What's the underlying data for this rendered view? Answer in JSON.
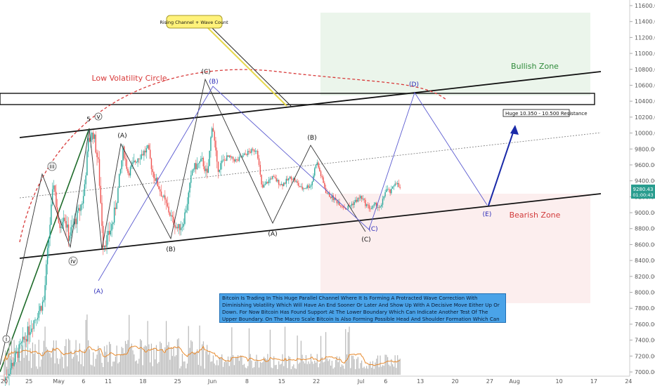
{
  "chart_data": {
    "type": "candlestick",
    "title": "",
    "y_axis": {
      "ylim": [
        6900,
        11700
      ],
      "ticks": [
        7000,
        7200,
        7400,
        7600,
        7800,
        8000,
        8200,
        8400,
        8600,
        8800,
        9000,
        9200,
        9400,
        9600,
        9800,
        10000,
        10200,
        10400,
        10600,
        10800,
        11000,
        11200,
        11400,
        11600
      ],
      "tick_labels": [
        "7000.00",
        "7200.00",
        "7400.00",
        "7600.00",
        "7800.00",
        "8000.00",
        "8200.00",
        "8400.00",
        "8600.00",
        "8800.00",
        "9000.00",
        "9200.00",
        "9400.00",
        "9600.00",
        "9800.00",
        "10000.00",
        "10200.00",
        "10400.00",
        "10600.00",
        "10800.00",
        "11000.00",
        "11200.00",
        "11400.00",
        "11600.00"
      ],
      "price_badge": "9280.43",
      "time_badge": "01:00:43"
    },
    "x_axis": {
      "labels": [
        "20",
        "25",
        "May",
        "6",
        "11",
        "18",
        "25",
        "Jun",
        "8",
        "15",
        "22",
        "Jul",
        "6",
        "13",
        "20",
        "27",
        "Aug",
        "10",
        "17",
        "24"
      ],
      "dates": [
        "2020-04-20",
        "2020-04-25",
        "2020-05-01",
        "2020-05-06",
        "2020-05-11",
        "2020-05-18",
        "2020-05-25",
        "2020-06-01",
        "2020-06-08",
        "2020-06-15",
        "2020-06-22",
        "2020-07-01",
        "2020-07-06",
        "2020-07-13",
        "2020-07-20",
        "2020-07-27",
        "2020-08-01",
        "2020-08-10",
        "2020-08-17",
        "2020-08-24"
      ]
    },
    "price_path": [
      [
        "2020-04-20",
        6900
      ],
      [
        "2020-04-22",
        7150
      ],
      [
        "2020-04-24",
        7400
      ],
      [
        "2020-04-26",
        7650
      ],
      [
        "2020-04-28",
        7900
      ],
      [
        "2020-04-29",
        8700
      ],
      [
        "2020-04-30",
        9400
      ],
      [
        "2020-05-01",
        8800
      ],
      [
        "2020-05-02",
        9000
      ],
      [
        "2020-05-03",
        8700
      ],
      [
        "2020-05-05",
        9000
      ],
      [
        "2020-05-06",
        9200
      ],
      [
        "2020-05-07",
        9900
      ],
      [
        "2020-05-08",
        10000
      ],
      [
        "2020-05-09",
        9600
      ],
      [
        "2020-05-10",
        8600
      ],
      [
        "2020-05-11",
        8700
      ],
      [
        "2020-05-12",
        8900
      ],
      [
        "2020-05-13",
        9300
      ],
      [
        "2020-05-14",
        9800
      ],
      [
        "2020-05-15",
        9500
      ],
      [
        "2020-05-17",
        9700
      ],
      [
        "2020-05-19",
        9800
      ],
      [
        "2020-05-20",
        9500
      ],
      [
        "2020-05-22",
        9200
      ],
      [
        "2020-05-24",
        8900
      ],
      [
        "2020-05-25",
        8800
      ],
      [
        "2020-05-26",
        8850
      ],
      [
        "2020-05-27",
        9150
      ],
      [
        "2020-05-28",
        9550
      ],
      [
        "2020-05-30",
        9650
      ],
      [
        "2020-05-31",
        9450
      ],
      [
        "2020-06-01",
        10150
      ],
      [
        "2020-06-02",
        9550
      ],
      [
        "2020-06-04",
        9700
      ],
      [
        "2020-06-06",
        9650
      ],
      [
        "2020-06-08",
        9750
      ],
      [
        "2020-06-10",
        9800
      ],
      [
        "2020-06-11",
        9300
      ],
      [
        "2020-06-13",
        9450
      ],
      [
        "2020-06-15",
        9350
      ],
      [
        "2020-06-17",
        9450
      ],
      [
        "2020-06-19",
        9300
      ],
      [
        "2020-06-21",
        9350
      ],
      [
        "2020-06-22",
        9650
      ],
      [
        "2020-06-24",
        9250
      ],
      [
        "2020-06-26",
        9150
      ],
      [
        "2020-06-28",
        9050
      ],
      [
        "2020-06-30",
        9150
      ],
      [
        "2020-07-01",
        9200
      ],
      [
        "2020-07-02",
        9100
      ],
      [
        "2020-07-03",
        9050
      ],
      [
        "2020-07-04",
        9100
      ],
      [
        "2020-07-05",
        9050
      ],
      [
        "2020-07-06",
        9300
      ],
      [
        "2020-07-07",
        9250
      ],
      [
        "2020-07-08",
        9400
      ],
      [
        "2020-07-09",
        9280
      ]
    ],
    "annotations": {
      "callout": "Rising Channel + Wave Count",
      "low_volatility": "Low Volatility Circle",
      "bullish_zone": "Bullish Zone",
      "bearish_zone": "Bearish Zone",
      "resistance": "Huge 10.350 - 10.500 Resistance",
      "description": "Bitcoin Is Trading In This Huge Parallel Channel Where It Is Forming A Protracted Wave Correction With Diminishing Volatility Which Will Have An End Sooner Or Later And Show Up With A Decisive Move Either Up Or Down. For Now Bitcoin Has Found Support At The Lower Boundary Which Can Indicate Another Test Of The Upper Boundary. On The Macro Scale Bitcoin Is Also Forming Possible Head And Shoulder Formation Which Can Confirm To The Downside Or To The Upside Similarly We Have Seen It In The Past Price.",
      "wave_labels": {
        "i": "i",
        "iii": "iii",
        "iv": "iv",
        "v": "v",
        "five": "5",
        "A": "(A)",
        "B": "(B)",
        "C": "(C)",
        "D": "(D)",
        "E": "(E)"
      }
    },
    "grid": false,
    "legend": "none"
  }
}
